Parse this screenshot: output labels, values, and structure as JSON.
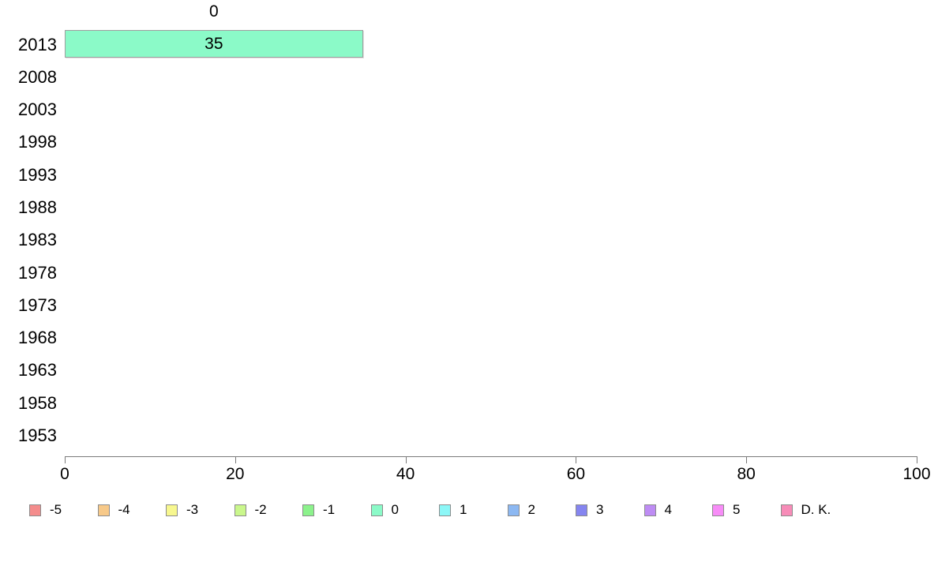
{
  "chart_data": {
    "type": "bar",
    "orientation": "horizontal",
    "title": "",
    "xlabel": "",
    "ylabel": "",
    "categories": [
      "2013",
      "2008",
      "2003",
      "1998",
      "1993",
      "1988",
      "1983",
      "1978",
      "1973",
      "1968",
      "1963",
      "1958",
      "1953"
    ],
    "series": [
      {
        "name": "0",
        "color": "#8BFAC8",
        "values": [
          35,
          null,
          null,
          null,
          null,
          null,
          null,
          null,
          null,
          null,
          null,
          null,
          null
        ]
      }
    ],
    "bar": {
      "year": "2013",
      "segment_label": "0",
      "value": 35,
      "value_label": "35"
    },
    "xlim": [
      0,
      100
    ],
    "x_ticks": [
      "0",
      "20",
      "40",
      "60",
      "80",
      "100"
    ],
    "grid": false,
    "legend_position": "bottom",
    "legend": [
      {
        "label": "-5",
        "color": "#F48C8C"
      },
      {
        "label": "-4",
        "color": "#F7C989"
      },
      {
        "label": "-3",
        "color": "#F7F78F"
      },
      {
        "label": "-2",
        "color": "#CAF78C"
      },
      {
        "label": "-1",
        "color": "#8CF28C"
      },
      {
        "label": "0",
        "color": "#8BFAC8"
      },
      {
        "label": "1",
        "color": "#8CF7F7"
      },
      {
        "label": "2",
        "color": "#8CB8F2"
      },
      {
        "label": "3",
        "color": "#8585F0"
      },
      {
        "label": "4",
        "color": "#BE8CF4"
      },
      {
        "label": "5",
        "color": "#F78CF7"
      },
      {
        "label": "D. K.",
        "color": "#F78CB8"
      }
    ]
  }
}
